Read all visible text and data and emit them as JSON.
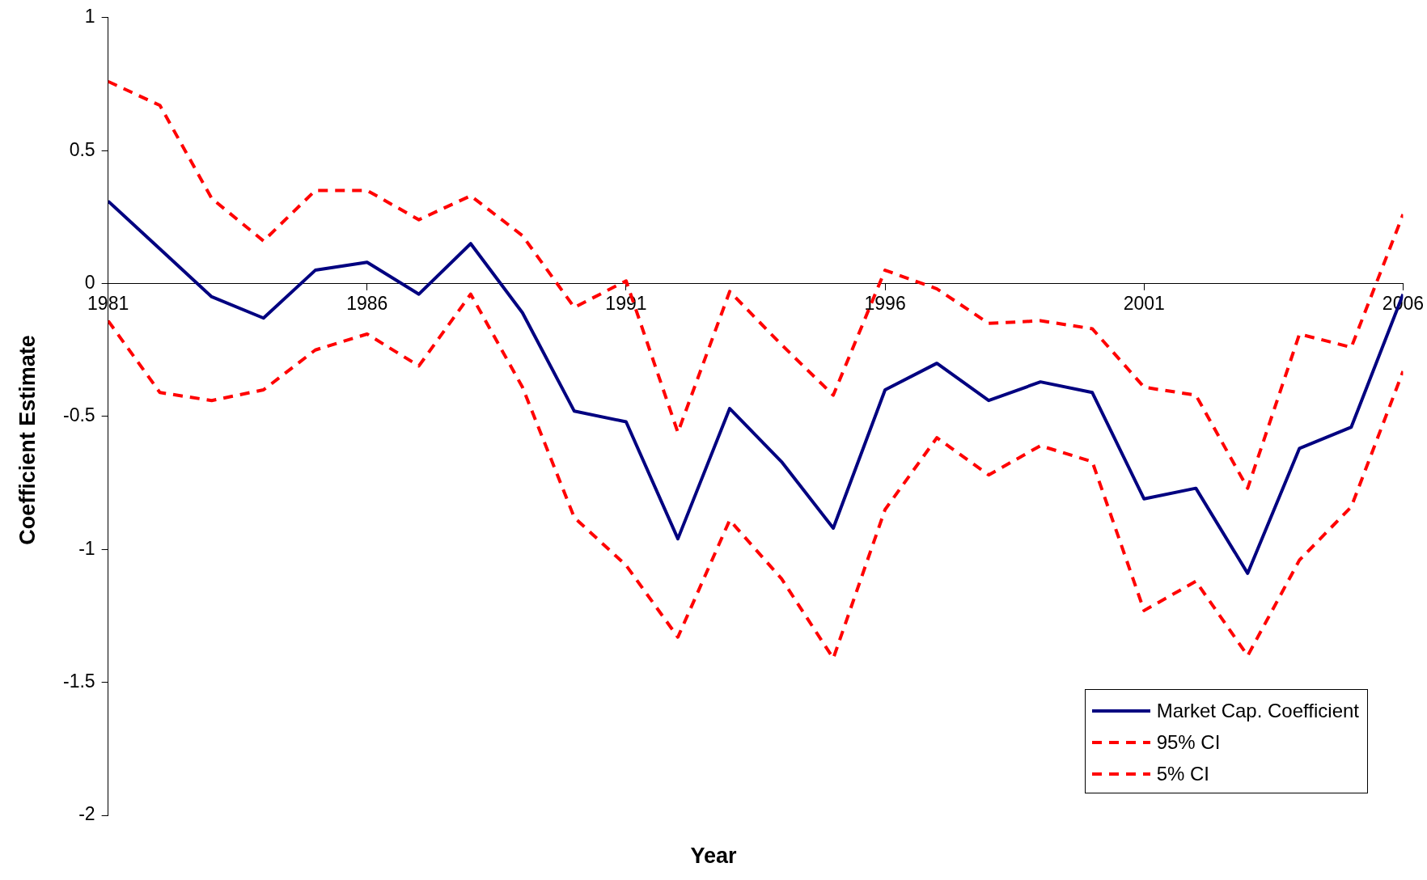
{
  "chart_data": {
    "type": "line",
    "xlabel": "Year",
    "ylabel": "Coefficient Estimate",
    "x": [
      1981,
      1982,
      1983,
      1984,
      1985,
      1986,
      1987,
      1988,
      1989,
      1990,
      1991,
      1992,
      1993,
      1994,
      1995,
      1996,
      1997,
      1998,
      1999,
      2000,
      2001,
      2002,
      2003,
      2004,
      2005,
      2006
    ],
    "xlim": [
      1981,
      2006
    ],
    "xticks": [
      1981,
      1986,
      1991,
      1996,
      2001,
      2006
    ],
    "ylim": [
      -2,
      1
    ],
    "yticks": [
      -2,
      -1.5,
      -1,
      -0.5,
      0,
      0.5,
      1
    ],
    "grid": false,
    "legend": "bottom right",
    "marker": "none",
    "series": [
      {
        "name": "Market Cap. Coefficient",
        "color": "#000080",
        "line_style": "solid",
        "values": [
          0.31,
          0.13,
          -0.05,
          -0.13,
          0.05,
          0.08,
          -0.04,
          0.15,
          -0.11,
          -0.48,
          -0.52,
          -0.96,
          -0.47,
          -0.67,
          -0.92,
          -0.4,
          -0.3,
          -0.44,
          -0.37,
          -0.41,
          -0.81,
          -0.77,
          -1.09,
          -0.62,
          -0.54,
          -0.04
        ]
      },
      {
        "name": "95% CI",
        "color": "#ff0000",
        "line_style": "dashed",
        "values": [
          0.76,
          0.67,
          0.32,
          0.16,
          0.35,
          0.35,
          0.24,
          0.33,
          0.18,
          -0.09,
          0.01,
          -0.56,
          -0.03,
          -0.23,
          -0.42,
          0.05,
          -0.02,
          -0.15,
          -0.14,
          -0.17,
          -0.39,
          -0.42,
          -0.77,
          -0.19,
          -0.24,
          0.26
        ]
      },
      {
        "name": "5% CI",
        "color": "#ff0000",
        "line_style": "dashed",
        "values": [
          -0.14,
          -0.41,
          -0.44,
          -0.4,
          -0.25,
          -0.19,
          -0.31,
          -0.04,
          -0.39,
          -0.88,
          -1.06,
          -1.33,
          -0.89,
          -1.11,
          -1.41,
          -0.85,
          -0.58,
          -0.72,
          -0.61,
          -0.67,
          -1.23,
          -1.12,
          -1.4,
          -1.04,
          -0.84,
          -0.33
        ]
      }
    ]
  }
}
